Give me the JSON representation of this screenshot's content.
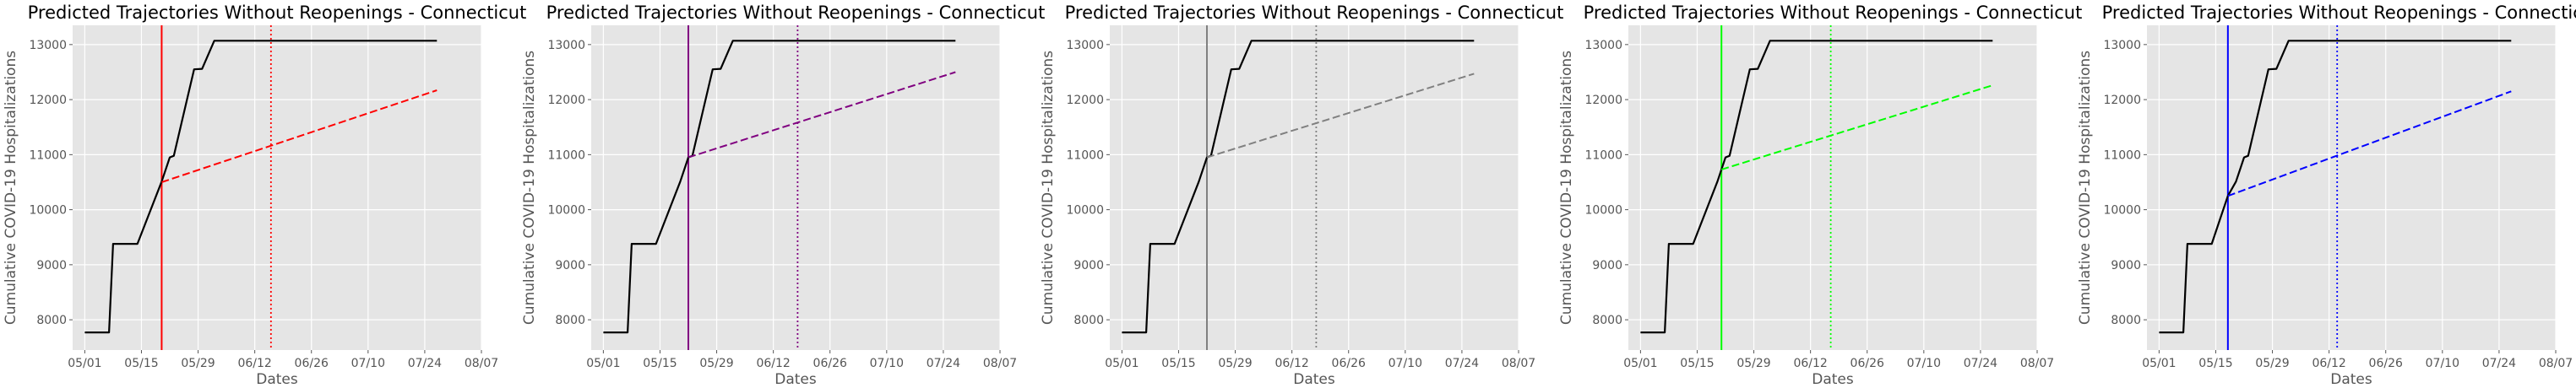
{
  "chart_data": [
    {
      "type": "line",
      "title": "Predicted Trajectories Without Reopenings - Connecticut",
      "xlabel": "Dates",
      "ylabel": "Cumulative COVID-19 Hospitalizations",
      "x_ticks": [
        "05/01",
        "05/15",
        "05/29",
        "06/12",
        "06/26",
        "07/10",
        "07/24",
        "08/07"
      ],
      "y_ticks": [
        "8000",
        "9000",
        "10000",
        "11000",
        "12000",
        "13000"
      ],
      "xlim": [
        "2020-04-28",
        "2020-08-07"
      ],
      "ylim": [
        7450,
        13350
      ],
      "grid": true,
      "background": "#e5e5e5",
      "accent_color": "#ff0000",
      "observed": {
        "color": "#000000",
        "style": "solid",
        "points": [
          [
            "2020-05-01",
            7770
          ],
          [
            "2020-05-07",
            7770
          ],
          [
            "2020-05-08",
            9380
          ],
          [
            "2020-05-14",
            9380
          ],
          [
            "2020-05-20",
            10510
          ],
          [
            "2020-05-22",
            10950
          ],
          [
            "2020-05-23",
            10980
          ],
          [
            "2020-05-28",
            12550
          ],
          [
            "2020-05-30",
            12560
          ],
          [
            "2020-06-02",
            13070
          ],
          [
            "2020-07-27",
            13070
          ]
        ]
      },
      "prediction": {
        "color": "#ff0000",
        "style": "dashed",
        "points": [
          [
            "2020-05-20",
            10500
          ],
          [
            "2020-07-27",
            12170
          ]
        ]
      },
      "markers": [
        {
          "date": "2020-05-20",
          "color": "#ff0000",
          "style": "solid"
        },
        {
          "date": "2020-06-16",
          "color": "#ff0000",
          "style": "dotted"
        }
      ]
    },
    {
      "type": "line",
      "title": "Predicted Trajectories Without Reopenings - Connecticut",
      "xlabel": "Dates",
      "ylabel": "Cumulative COVID-19 Hospitalizations",
      "x_ticks": [
        "05/01",
        "05/15",
        "05/29",
        "06/12",
        "06/26",
        "07/10",
        "07/24",
        "08/07"
      ],
      "y_ticks": [
        "8000",
        "9000",
        "10000",
        "11000",
        "12000",
        "13000"
      ],
      "xlim": [
        "2020-04-28",
        "2020-08-07"
      ],
      "ylim": [
        7450,
        13350
      ],
      "grid": true,
      "background": "#e5e5e5",
      "accent_color": "#800080",
      "observed": {
        "color": "#000000",
        "style": "solid",
        "points": [
          [
            "2020-05-01",
            7770
          ],
          [
            "2020-05-07",
            7770
          ],
          [
            "2020-05-08",
            9380
          ],
          [
            "2020-05-14",
            9380
          ],
          [
            "2020-05-20",
            10510
          ],
          [
            "2020-05-22",
            10950
          ],
          [
            "2020-05-23",
            10980
          ],
          [
            "2020-05-28",
            12550
          ],
          [
            "2020-05-30",
            12560
          ],
          [
            "2020-06-02",
            13070
          ],
          [
            "2020-07-27",
            13070
          ]
        ]
      },
      "prediction": {
        "color": "#800080",
        "style": "dashed",
        "points": [
          [
            "2020-05-22",
            10950
          ],
          [
            "2020-07-27",
            12500
          ]
        ]
      },
      "markers": [
        {
          "date": "2020-05-22",
          "color": "#800080",
          "style": "solid"
        },
        {
          "date": "2020-06-18",
          "color": "#800080",
          "style": "dotted"
        }
      ]
    },
    {
      "type": "line",
      "title": "Predicted Trajectories Without Reopenings - Connecticut",
      "xlabel": "Dates",
      "ylabel": "Cumulative COVID-19 Hospitalizations",
      "x_ticks": [
        "05/01",
        "05/15",
        "05/29",
        "06/12",
        "06/26",
        "07/10",
        "07/24",
        "08/07"
      ],
      "y_ticks": [
        "8000",
        "9000",
        "10000",
        "11000",
        "12000",
        "13000"
      ],
      "xlim": [
        "2020-04-28",
        "2020-08-07"
      ],
      "ylim": [
        7450,
        13350
      ],
      "grid": true,
      "background": "#e5e5e5",
      "accent_color": "#808080",
      "observed": {
        "color": "#000000",
        "style": "solid",
        "points": [
          [
            "2020-05-01",
            7770
          ],
          [
            "2020-05-07",
            7770
          ],
          [
            "2020-05-08",
            9380
          ],
          [
            "2020-05-14",
            9380
          ],
          [
            "2020-05-20",
            10510
          ],
          [
            "2020-05-22",
            10950
          ],
          [
            "2020-05-23",
            10980
          ],
          [
            "2020-05-28",
            12550
          ],
          [
            "2020-05-30",
            12560
          ],
          [
            "2020-06-02",
            13070
          ],
          [
            "2020-07-27",
            13070
          ]
        ]
      },
      "prediction": {
        "color": "#808080",
        "style": "dashed",
        "points": [
          [
            "2020-05-22",
            10950
          ],
          [
            "2020-07-27",
            12470
          ]
        ]
      },
      "markers": [
        {
          "date": "2020-05-22",
          "color": "#808080",
          "style": "solid"
        },
        {
          "date": "2020-06-18",
          "color": "#808080",
          "style": "dotted"
        }
      ]
    },
    {
      "type": "line",
      "title": "Predicted Trajectories Without Reopenings - Connecticut",
      "xlabel": "Dates",
      "ylabel": "Cumulative COVID-19 Hospitalizations",
      "x_ticks": [
        "05/01",
        "05/15",
        "05/29",
        "06/12",
        "06/26",
        "07/10",
        "07/24",
        "08/07"
      ],
      "y_ticks": [
        "8000",
        "9000",
        "10000",
        "11000",
        "12000",
        "13000"
      ],
      "xlim": [
        "2020-04-28",
        "2020-08-07"
      ],
      "ylim": [
        7450,
        13350
      ],
      "grid": true,
      "background": "#e5e5e5",
      "accent_color": "#00ff00",
      "observed": {
        "color": "#000000",
        "style": "solid",
        "points": [
          [
            "2020-05-01",
            7770
          ],
          [
            "2020-05-07",
            7770
          ],
          [
            "2020-05-08",
            9380
          ],
          [
            "2020-05-14",
            9380
          ],
          [
            "2020-05-20",
            10510
          ],
          [
            "2020-05-22",
            10950
          ],
          [
            "2020-05-23",
            10980
          ],
          [
            "2020-05-28",
            12550
          ],
          [
            "2020-05-30",
            12560
          ],
          [
            "2020-06-02",
            13070
          ],
          [
            "2020-07-27",
            13070
          ]
        ]
      },
      "prediction": {
        "color": "#00ff00",
        "style": "dashed",
        "points": [
          [
            "2020-05-21",
            10730
          ],
          [
            "2020-07-27",
            12260
          ]
        ]
      },
      "markers": [
        {
          "date": "2020-05-21",
          "color": "#00ff00",
          "style": "solid"
        },
        {
          "date": "2020-06-17",
          "color": "#00ff00",
          "style": "dotted"
        }
      ]
    },
    {
      "type": "line",
      "title": "Predicted Trajectories Without Reopenings - Connecticut",
      "xlabel": "Dates",
      "ylabel": "Cumulative COVID-19 Hospitalizations",
      "x_ticks": [
        "05/01",
        "05/15",
        "05/29",
        "06/12",
        "06/26",
        "07/10",
        "07/24",
        "08/07"
      ],
      "y_ticks": [
        "8000",
        "9000",
        "10000",
        "11000",
        "12000",
        "13000"
      ],
      "xlim": [
        "2020-04-28",
        "2020-08-07"
      ],
      "ylim": [
        7450,
        13350
      ],
      "grid": true,
      "background": "#e5e5e5",
      "accent_color": "#0000ff",
      "observed": {
        "color": "#000000",
        "style": "solid",
        "points": [
          [
            "2020-05-01",
            7770
          ],
          [
            "2020-05-07",
            7770
          ],
          [
            "2020-05-08",
            9380
          ],
          [
            "2020-05-14",
            9380
          ],
          [
            "2020-05-18",
            10250
          ],
          [
            "2020-05-20",
            10510
          ],
          [
            "2020-05-22",
            10950
          ],
          [
            "2020-05-23",
            10980
          ],
          [
            "2020-05-28",
            12550
          ],
          [
            "2020-05-30",
            12560
          ],
          [
            "2020-06-02",
            13070
          ],
          [
            "2020-07-27",
            13070
          ]
        ]
      },
      "prediction": {
        "color": "#0000ff",
        "style": "dashed",
        "points": [
          [
            "2020-05-18",
            10250
          ],
          [
            "2020-07-27",
            12150
          ]
        ]
      },
      "markers": [
        {
          "date": "2020-05-18",
          "color": "#0000ff",
          "style": "solid"
        },
        {
          "date": "2020-06-14",
          "color": "#0000ff",
          "style": "dotted"
        }
      ]
    }
  ]
}
